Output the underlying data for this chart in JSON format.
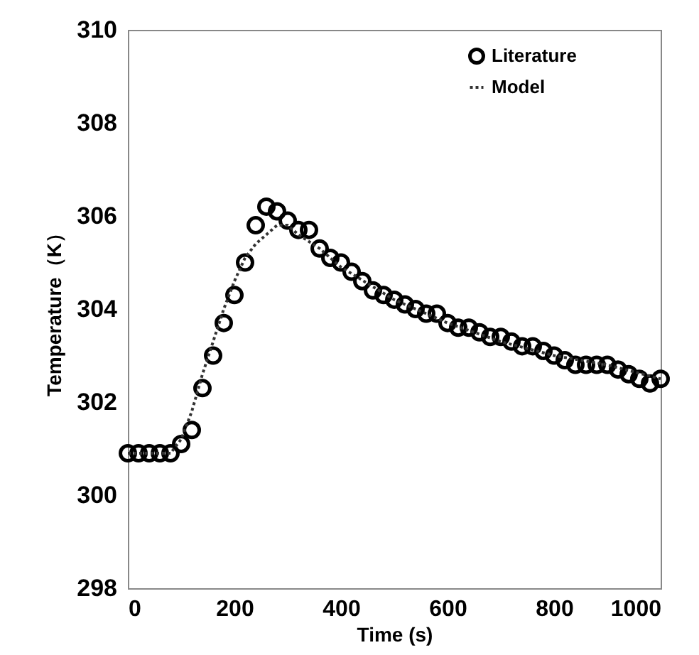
{
  "chart_data": {
    "type": "scatter",
    "xlabel": "Time (s)",
    "ylabel": "Temperature（K）",
    "xlim": [
      0,
      1000
    ],
    "xticks": [
      0,
      200,
      400,
      600,
      800,
      1000
    ],
    "ylim": [
      298,
      310
    ],
    "yticks": [
      298,
      300,
      302,
      304,
      306,
      308,
      310
    ],
    "grid": false,
    "legend": "top right",
    "series": [
      {
        "name": "Literature",
        "marker": "circle",
        "color": "#000000",
        "x": [
          0,
          20,
          40,
          60,
          80,
          100,
          120,
          140,
          160,
          180,
          200,
          220,
          240,
          260,
          280,
          300,
          320,
          340,
          360,
          380,
          400,
          420,
          440,
          460,
          480,
          500,
          520,
          540,
          560,
          580,
          600,
          620,
          640,
          660,
          680,
          700,
          720,
          740,
          760,
          780,
          800,
          820,
          840,
          860,
          880,
          900,
          920,
          940,
          960,
          980,
          1000
        ],
        "values": [
          300.9,
          300.9,
          300.9,
          300.9,
          300.9,
          301.1,
          301.4,
          302.3,
          303.0,
          303.7,
          304.3,
          305.0,
          305.8,
          306.2,
          306.1,
          305.9,
          305.7,
          305.7,
          305.3,
          305.1,
          305.0,
          304.8,
          304.6,
          304.4,
          304.3,
          304.2,
          304.1,
          304.0,
          303.9,
          303.9,
          303.7,
          303.6,
          303.6,
          303.5,
          303.4,
          303.4,
          303.3,
          303.2,
          303.2,
          303.1,
          303.0,
          302.9,
          302.8,
          302.8,
          302.8,
          302.8,
          302.7,
          302.6,
          302.5,
          302.4,
          302.5
        ]
      },
      {
        "name": "Model",
        "type": "line",
        "line_style": "dotted",
        "color": "#333333",
        "x": [
          0,
          80,
          100,
          120,
          140,
          160,
          180,
          200,
          220,
          240,
          260,
          280,
          300,
          320,
          360,
          400,
          500,
          600,
          700,
          800,
          900,
          1000
        ],
        "values": [
          300.9,
          300.9,
          301.2,
          301.8,
          302.6,
          303.3,
          304.0,
          304.6,
          305.1,
          305.4,
          305.6,
          305.8,
          305.8,
          305.6,
          305.3,
          304.9,
          304.2,
          303.7,
          303.3,
          303.0,
          302.8,
          302.5
        ]
      }
    ]
  }
}
